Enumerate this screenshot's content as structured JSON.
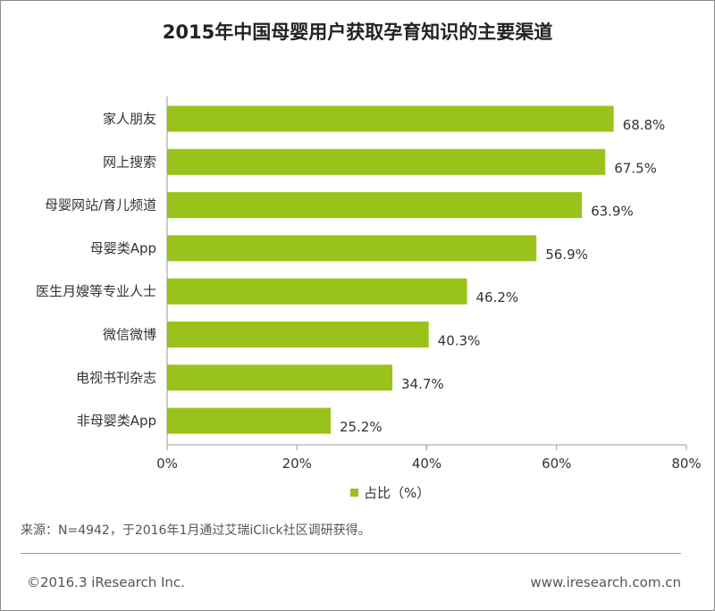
{
  "title": "2015年中国母婴用户获取孕育知识的主要渠道",
  "chart_data": {
    "type": "bar",
    "orientation": "horizontal",
    "categories": [
      "家人朋友",
      "网上搜索",
      "母婴网站/育儿频道",
      "母婴类App",
      "医生月嫂等专业人士",
      "微信微博",
      "电视书刊杂志",
      "非母婴类App"
    ],
    "values": [
      68.8,
      67.5,
      63.9,
      56.9,
      46.2,
      40.3,
      34.7,
      25.2
    ],
    "value_labels": [
      "68.8%",
      "67.5%",
      "63.9%",
      "56.9%",
      "46.2%",
      "40.3%",
      "34.7%",
      "25.2%"
    ],
    "series": [
      {
        "name": "占比（%）",
        "values": [
          68.8,
          67.5,
          63.9,
          56.9,
          46.2,
          40.3,
          34.7,
          25.2
        ]
      }
    ],
    "xlim": [
      0,
      80
    ],
    "x_ticks": [
      0,
      20,
      40,
      60,
      80
    ],
    "x_tick_labels": [
      "0%",
      "20%",
      "40%",
      "60%",
      "80%"
    ],
    "legend_position": "bottom-center",
    "grid": false,
    "bar_color": "#99c31a"
  },
  "source_note": "来源：N=4942，于2016年1月通过艾瑞iClick社区调研获得。",
  "footer": {
    "copyright": "©2016.3 iResearch Inc.",
    "website": "www.iresearch.com.cn"
  }
}
